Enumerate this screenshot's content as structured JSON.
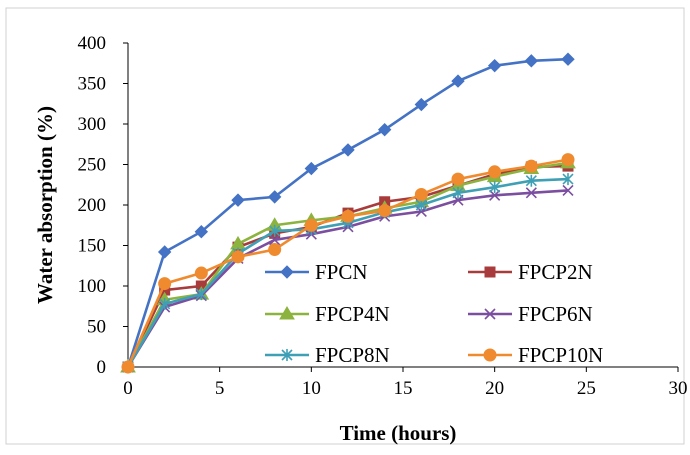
{
  "chart_data": {
    "type": "line",
    "title": "",
    "xlabel": "Time (hours)",
    "ylabel": "Water absorption (%)",
    "xlim": [
      0,
      30
    ],
    "ylim": [
      0,
      400
    ],
    "xticks": [
      "0",
      "5",
      "10",
      "15",
      "20",
      "25",
      "30"
    ],
    "yticks": [
      "0",
      "50",
      "100",
      "150",
      "200",
      "250",
      "300",
      "350",
      "400"
    ],
    "grid": false,
    "legend_position": "inside-lower-center",
    "x": [
      0,
      2,
      4,
      6,
      8,
      10,
      12,
      14,
      16,
      18,
      20,
      22,
      24
    ],
    "series": [
      {
        "name": "FPCN",
        "color": "#4472C4",
        "marker": "diamond",
        "values": [
          0,
          142,
          167,
          206,
          210,
          245,
          268,
          293,
          324,
          353,
          372,
          378,
          380
        ]
      },
      {
        "name": "FPCP2N",
        "color": "#A83B3B",
        "marker": "square",
        "values": [
          0,
          95,
          100,
          148,
          165,
          173,
          190,
          204,
          210,
          224,
          238,
          247,
          248
        ]
      },
      {
        "name": "FPCP4N",
        "color": "#8DB33F",
        "marker": "triangle",
        "values": [
          0,
          83,
          90,
          152,
          175,
          181,
          186,
          196,
          204,
          224,
          235,
          245,
          252
        ]
      },
      {
        "name": "FPCP6N",
        "color": "#7B4EA0",
        "marker": "x",
        "values": [
          0,
          74,
          88,
          134,
          157,
          164,
          173,
          186,
          192,
          206,
          212,
          215,
          218
        ]
      },
      {
        "name": "FPCP8N",
        "color": "#3FA0B5",
        "marker": "star",
        "values": [
          0,
          78,
          90,
          140,
          168,
          170,
          178,
          191,
          200,
          215,
          222,
          230,
          232
        ]
      },
      {
        "name": "FPCP10N",
        "color": "#F08A2E",
        "marker": "circle",
        "values": [
          0,
          103,
          116,
          136,
          145,
          175,
          186,
          193,
          213,
          232,
          241,
          248,
          256
        ]
      }
    ]
  }
}
